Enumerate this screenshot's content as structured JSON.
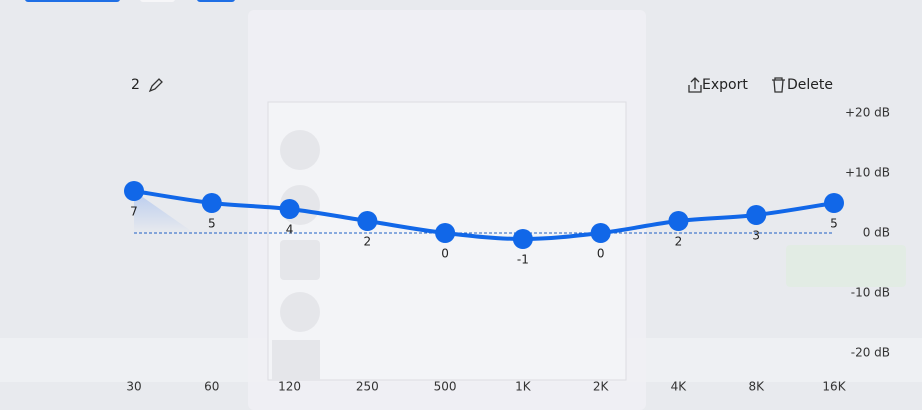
{
  "toolbar": {
    "preset": "2",
    "export": "Export",
    "delete": "Delete"
  },
  "chart_data": {
    "type": "line",
    "categories": [
      "30",
      "60",
      "120",
      "250",
      "500",
      "1K",
      "2K",
      "4K",
      "8K",
      "16K"
    ],
    "series": [
      {
        "color": "#1167e8",
        "values": [
          7,
          5,
          4,
          2,
          0,
          -1,
          0,
          2,
          3,
          5
        ]
      }
    ],
    "ylim": [
      -20,
      20
    ],
    "yticks": [
      {
        "value": 20,
        "label": "+20 dB"
      },
      {
        "value": 10,
        "label": "+10 dB"
      },
      {
        "value": 0,
        "label": "0 dB"
      },
      {
        "value": -10,
        "label": "-10 dB"
      },
      {
        "value": -20,
        "label": "-20 dB"
      }
    ],
    "baseline": 0
  }
}
